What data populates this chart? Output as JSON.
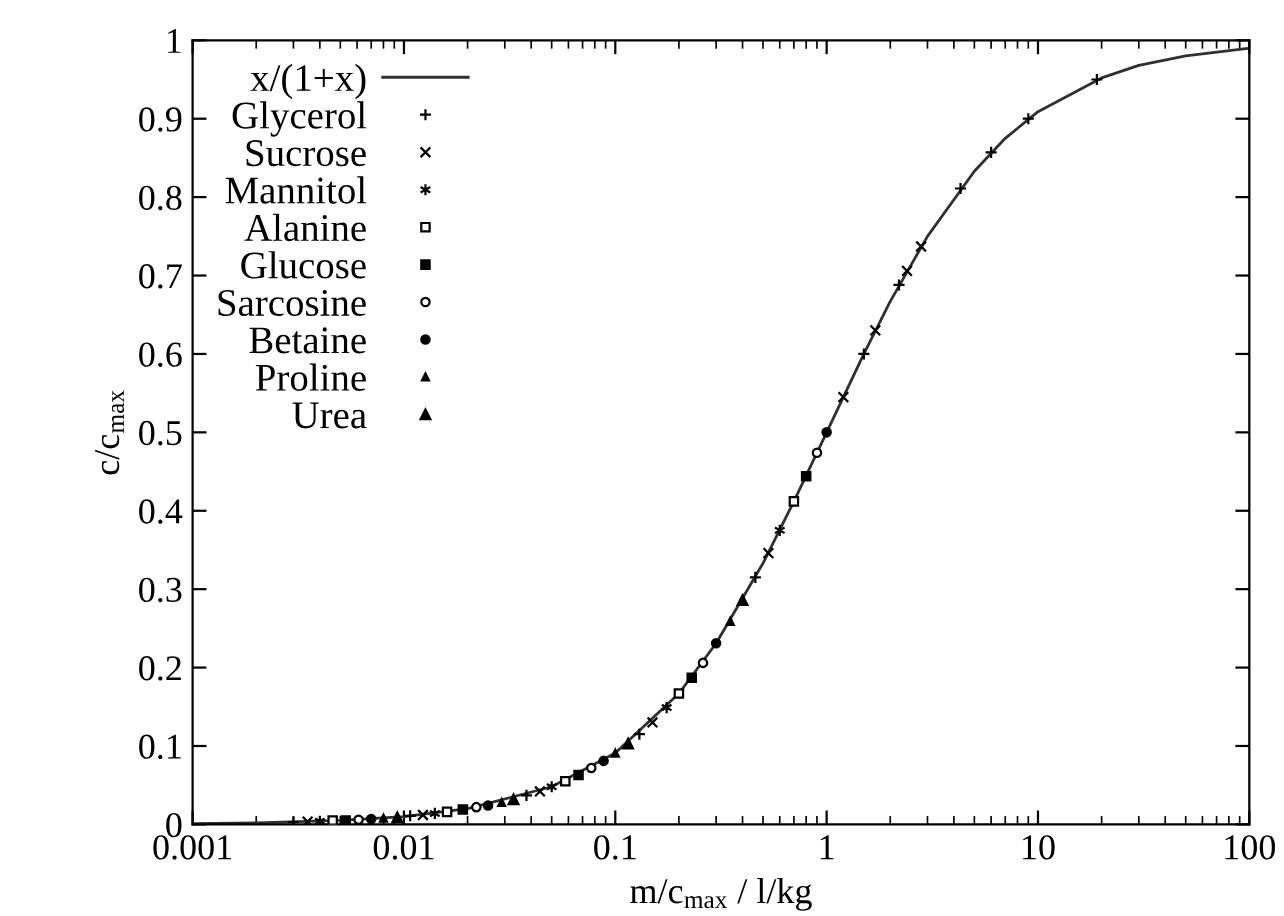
{
  "chart_data": {
    "type": "scatter",
    "xlabel": "m/c$_{max}$ / l/kg",
    "ylabel": "c/c$_{max}$",
    "log": "x",
    "xlim": [
      0.001,
      100
    ],
    "xticks": [
      0.001,
      0.01,
      0.1,
      1,
      10,
      100
    ],
    "ylim": [
      0,
      1
    ],
    "yticks": [
      0,
      0.1,
      0.2,
      0.3,
      0.4,
      0.5,
      0.6,
      0.7,
      0.8,
      0.9,
      1
    ],
    "grid": false,
    "legend": "top left",
    "series": [
      {
        "name": "x/(1+x)",
        "type": "line",
        "color": "#303030",
        "marker": "none",
        "line_style": "solid",
        "x": [
          0.001,
          0.002,
          0.005,
          0.01,
          0.02,
          0.05,
          0.1,
          0.2,
          0.3,
          0.5,
          0.7,
          1,
          1.5,
          2,
          3,
          5,
          7,
          10,
          20,
          30,
          50,
          100
        ],
        "values": [
          0.001,
          0.002,
          0.005,
          0.01,
          0.02,
          0.048,
          0.091,
          0.167,
          0.231,
          0.333,
          0.412,
          0.5,
          0.6,
          0.667,
          0.75,
          0.833,
          0.875,
          0.909,
          0.952,
          0.968,
          0.98,
          0.99
        ]
      },
      {
        "name": "Glycerol",
        "color": "#000000",
        "x": [
          0.003,
          0.0107,
          0.038,
          0.13,
          0.46,
          1.5,
          2.2,
          4.3,
          6,
          9,
          19
        ],
        "values": [
          0.003,
          0.011,
          0.037,
          0.115,
          0.315,
          0.6,
          0.688,
          0.811,
          0.857,
          0.9,
          0.95
        ]
      },
      {
        "name": "Sucrose",
        "color": "#000000",
        "x": [
          0.0035,
          0.0123,
          0.044,
          0.15,
          0.53,
          1.2,
          1.7,
          2.4,
          2.8
        ],
        "values": [
          0.0035,
          0.012,
          0.042,
          0.13,
          0.346,
          0.545,
          0.63,
          0.706,
          0.737
        ]
      },
      {
        "name": "Mannitol",
        "color": "#000000",
        "x": [
          0.004,
          0.014,
          0.05,
          0.175,
          0.6
        ],
        "values": [
          0.004,
          0.014,
          0.048,
          0.149,
          0.375
        ]
      },
      {
        "name": "Alanine",
        "color": "#000000",
        "x": [
          0.0046,
          0.016,
          0.058,
          0.2,
          0.7
        ],
        "values": [
          0.005,
          0.016,
          0.055,
          0.167,
          0.412
        ]
      },
      {
        "name": "Glucose",
        "color": "#000000",
        "x": [
          0.0053,
          0.019,
          0.067,
          0.23,
          0.8
        ],
        "values": [
          0.005,
          0.019,
          0.063,
          0.187,
          0.444
        ]
      },
      {
        "name": "Sarcosine",
        "color": "#000000",
        "x": [
          0.0061,
          0.022,
          0.077,
          0.26,
          0.9
        ],
        "values": [
          0.006,
          0.022,
          0.072,
          0.206,
          0.474
        ]
      },
      {
        "name": "Betaine",
        "color": "#000000",
        "x": [
          0.007,
          0.025,
          0.088,
          0.3,
          1.0
        ],
        "values": [
          0.007,
          0.024,
          0.081,
          0.231,
          0.5
        ]
      },
      {
        "name": "Proline",
        "color": "#000000",
        "x": [
          0.008,
          0.029,
          0.1,
          0.35
        ],
        "values": [
          0.008,
          0.028,
          0.091,
          0.259
        ]
      },
      {
        "name": "Urea",
        "color": "#000000",
        "x": [
          0.0093,
          0.033,
          0.115,
          0.4
        ],
        "values": [
          0.009,
          0.032,
          0.103,
          0.286
        ]
      }
    ]
  }
}
